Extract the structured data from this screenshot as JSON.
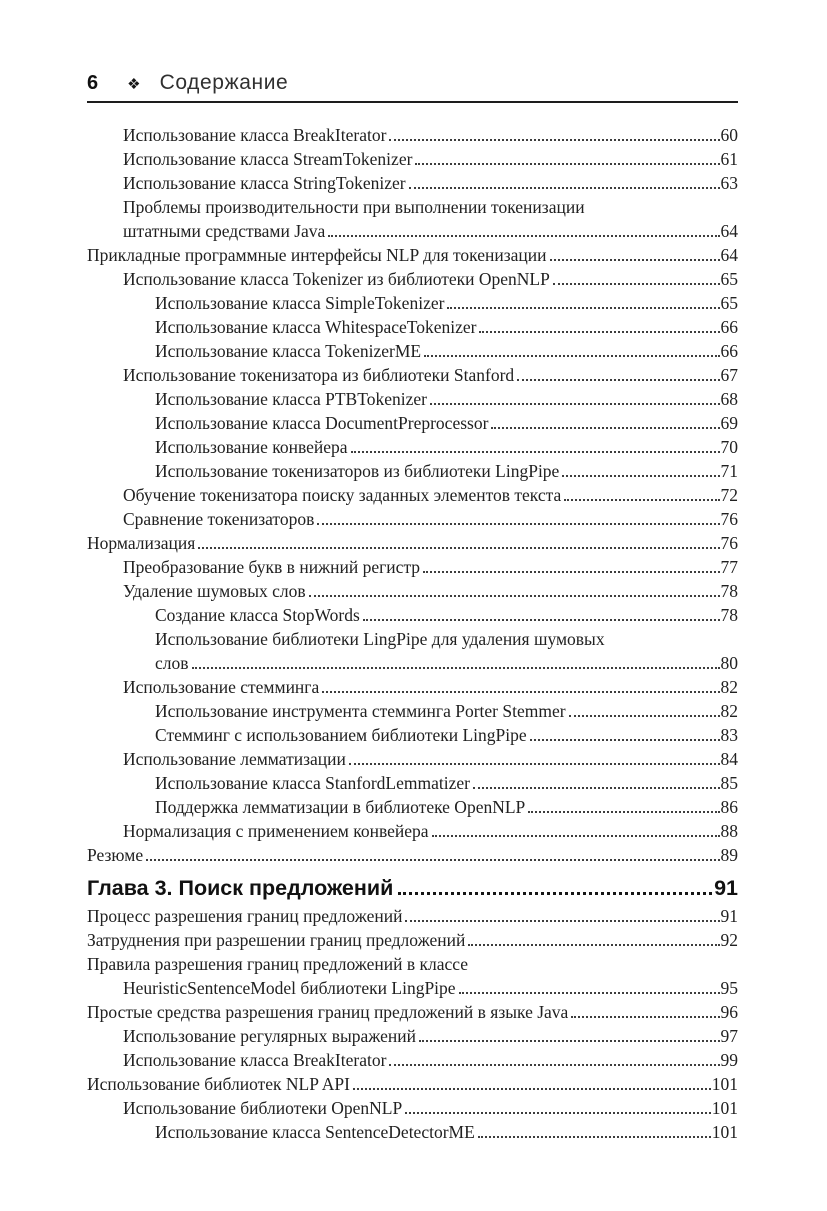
{
  "colors": {
    "background": "#ffffff",
    "text": "#212121",
    "rule": "#1d1d1d"
  },
  "header": {
    "page_number": "6",
    "ornament_glyph": "❖",
    "title": "Содержание"
  },
  "toc_section_1": [
    {
      "level": 1,
      "text": "Использование класса BreakIterator",
      "page": "60"
    },
    {
      "level": 1,
      "text": "Использование класса StreamTokenizer",
      "page": "61"
    },
    {
      "level": 1,
      "text": "Использование класса StringTokenizer",
      "page": "63"
    },
    {
      "level": 1,
      "text": "Проблемы производительности при выполнении токенизации",
      "page": null
    },
    {
      "level": 1,
      "text": "штатными средствами Java",
      "page": "64"
    },
    {
      "level": 0,
      "text": "Прикладные программные интерфейсы NLP для токенизации",
      "page": "64"
    },
    {
      "level": 1,
      "text": "Использование класса Tokenizer из библиотеки OpenNLP",
      "page": "65"
    },
    {
      "level": 2,
      "text": "Использование класса SimpleTokenizer",
      "page": "65"
    },
    {
      "level": 2,
      "text": "Использование класса WhitespaceTokenizer",
      "page": "66"
    },
    {
      "level": 2,
      "text": "Использование класса TokenizerME",
      "page": "66"
    },
    {
      "level": 1,
      "text": "Использование токенизатора из библиотеки Stanford",
      "page": "67"
    },
    {
      "level": 2,
      "text": "Использование класса PTBTokenizer",
      "page": "68"
    },
    {
      "level": 2,
      "text": "Использование класса DocumentPreprocessor",
      "page": "69"
    },
    {
      "level": 2,
      "text": "Использование конвейера",
      "page": "70"
    },
    {
      "level": 2,
      "text": "Использование токенизаторов из библиотеки LingPipe",
      "page": "71"
    },
    {
      "level": 1,
      "text": "Обучение токенизатора поиску заданных элементов текста",
      "page": "72"
    },
    {
      "level": 1,
      "text": "Сравнение токенизаторов",
      "page": "76"
    },
    {
      "level": 0,
      "text": "Нормализация",
      "page": "76"
    },
    {
      "level": 1,
      "text": "Преобразование букв в нижний регистр",
      "page": "77"
    },
    {
      "level": 1,
      "text": "Удаление шумовых слов",
      "page": "78"
    },
    {
      "level": 2,
      "text": "Создание класса StopWords",
      "page": "78"
    },
    {
      "level": 2,
      "text": "Использование библиотеки LingPipe для удаления шумовых",
      "page": null
    },
    {
      "level": 2,
      "text": "слов",
      "page": "80"
    },
    {
      "level": 1,
      "text": "Использование стемминга",
      "page": "82"
    },
    {
      "level": 2,
      "text": "Использование инструмента стемминга Porter Stemmer",
      "page": "82"
    },
    {
      "level": 2,
      "text": "Стемминг с использованием библиотеки LingPipe",
      "page": "83"
    },
    {
      "level": 1,
      "text": "Использование лемматизации",
      "page": "84"
    },
    {
      "level": 2,
      "text": "Использование класса StanfordLemmatizer",
      "page": "85"
    },
    {
      "level": 2,
      "text": "Поддержка лемматизации в библиотеке OpenNLP",
      "page": "86"
    },
    {
      "level": 1,
      "text": "Нормализация с применением конвейера",
      "page": "88"
    },
    {
      "level": 0,
      "text": "Резюме",
      "page": "89"
    }
  ],
  "chapter_heading": {
    "text": "Глава 3. Поиск предложений",
    "page": "91"
  },
  "toc_section_2": [
    {
      "level": 0,
      "text": "Процесс разрешения границ предложений",
      "page": "91"
    },
    {
      "level": 0,
      "text": "Затруднения при разрешении границ предложений",
      "page": "92"
    },
    {
      "level": 0,
      "text": "Правила разрешения границ предложений в классе",
      "page": null
    },
    {
      "level": 1,
      "text": "HeuristicSentenceModel библиотеки LingPipe",
      "page": "95"
    },
    {
      "level": 0,
      "text": "Простые средства разрешения границ предложений в языке Java",
      "page": "96"
    },
    {
      "level": 1,
      "text": "Использование регулярных выражений",
      "page": "97"
    },
    {
      "level": 1,
      "text": "Использование класса BreakIterator",
      "page": "99"
    },
    {
      "level": 0,
      "text": "Использование библиотек NLP API",
      "page": "101"
    },
    {
      "level": 1,
      "text": "Использование библиотеки OpenNLP",
      "page": "101"
    },
    {
      "level": 2,
      "text": "Использование класса SentenceDetectorME",
      "page": "101"
    }
  ]
}
